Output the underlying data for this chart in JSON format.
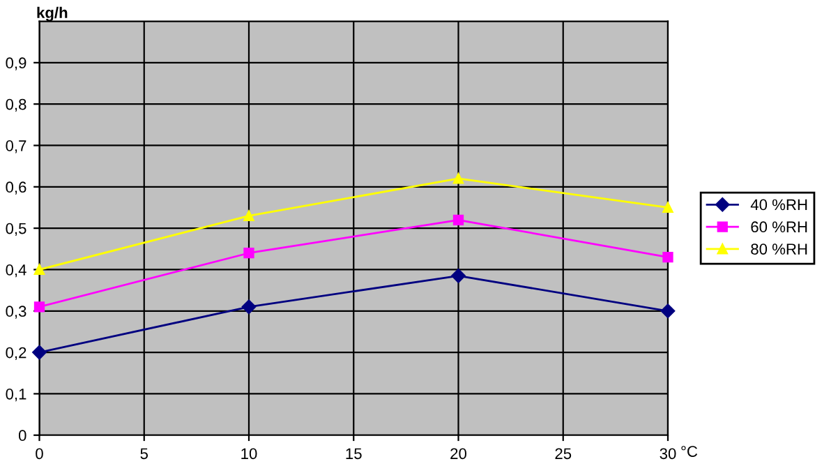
{
  "chart_data": {
    "type": "line",
    "xlabel": "°C",
    "ylabel": "kg/h",
    "x": [
      0,
      10,
      20,
      30
    ],
    "series": [
      {
        "name": "40 %RH",
        "color": "#000080",
        "marker": "diamond",
        "values": [
          0.2,
          0.31,
          0.385,
          0.3
        ]
      },
      {
        "name": "60 %RH",
        "color": "#ff00ff",
        "marker": "square",
        "values": [
          0.31,
          0.44,
          0.52,
          0.43
        ]
      },
      {
        "name": "80 %RH",
        "color": "#ffff00",
        "marker": "triangle",
        "values": [
          0.4,
          0.53,
          0.62,
          0.55
        ]
      }
    ],
    "xlim": [
      0,
      30
    ],
    "xticks": [
      0,
      5,
      10,
      15,
      20,
      25,
      30
    ],
    "ylim": [
      0,
      1
    ],
    "yticks": [
      0,
      {
        "value": 0.1,
        "label": "0,1"
      },
      {
        "value": 0.2,
        "label": "0,2"
      },
      {
        "value": 0.3,
        "label": "0,3"
      },
      {
        "value": 0.4,
        "label": "0,4"
      },
      {
        "value": 0.5,
        "label": "0,5"
      },
      {
        "value": 0.6,
        "label": "0,6"
      },
      {
        "value": 0.7,
        "label": "0,7"
      },
      {
        "value": 0.8,
        "label": "0,8"
      },
      {
        "value": 0.9,
        "label": "0,9"
      }
    ],
    "grid": true,
    "legend": "right",
    "line_style": "solid"
  }
}
